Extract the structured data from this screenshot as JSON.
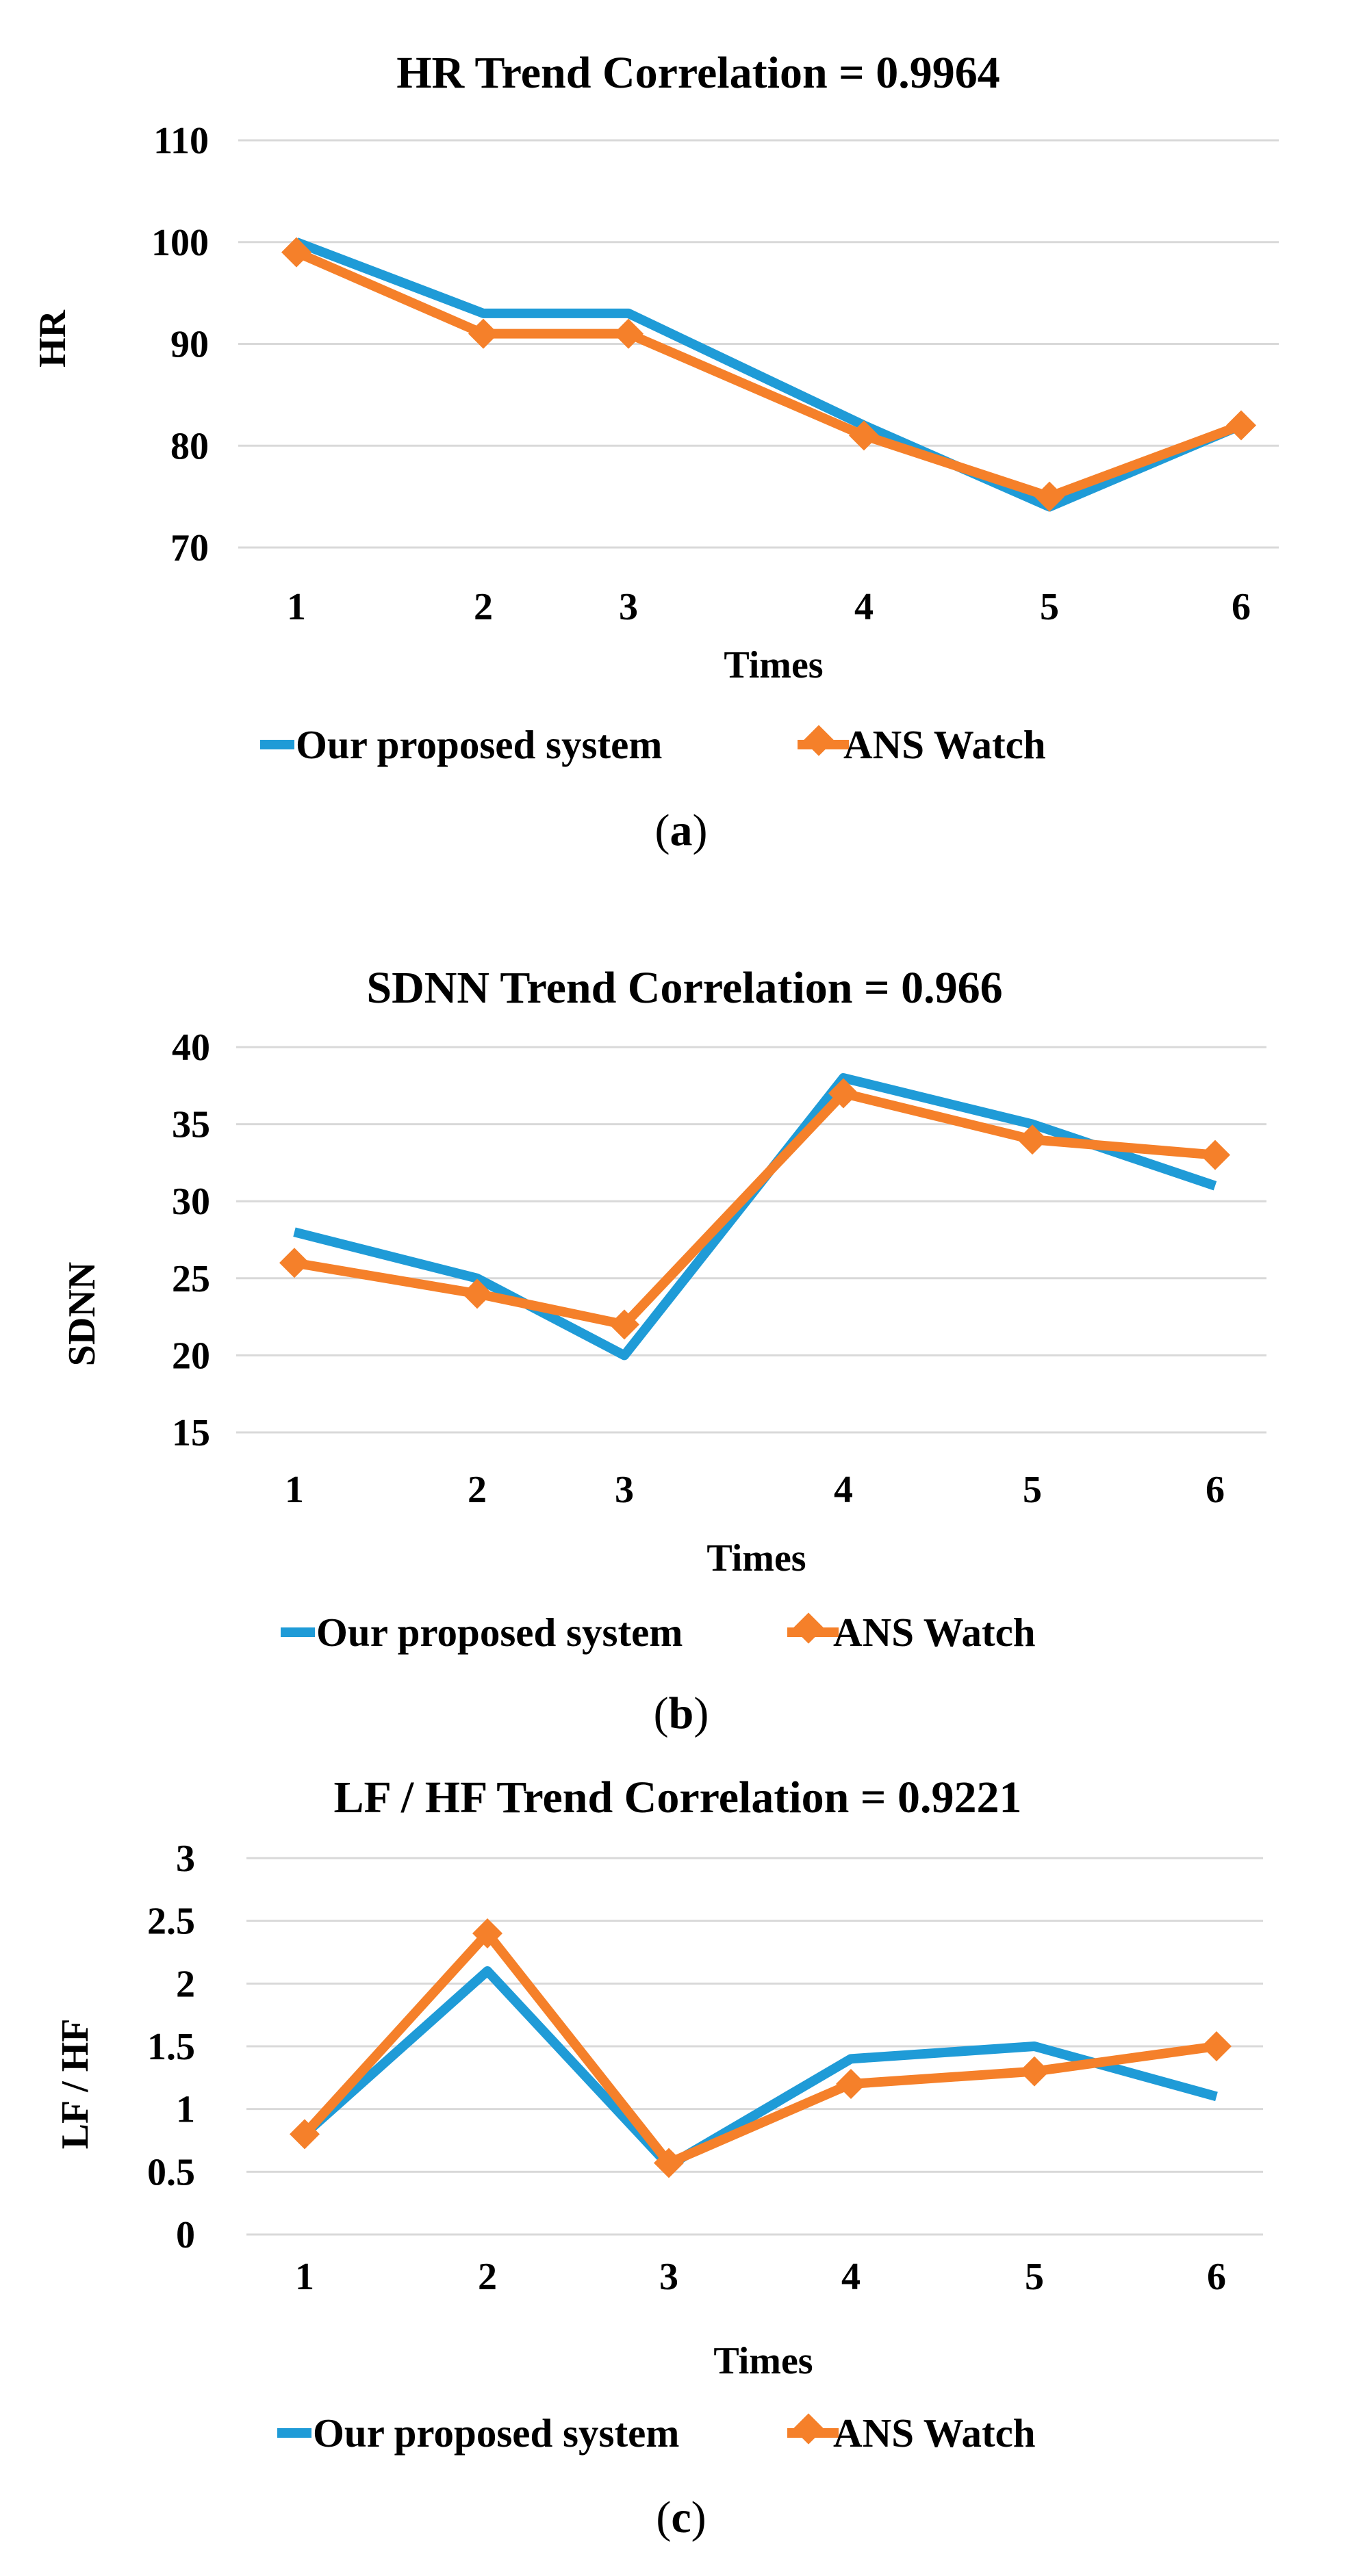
{
  "colors": {
    "proposed": "#1f9bd7",
    "ans_watch": "#f5802a",
    "grid": "#d9d9d9"
  },
  "chart_data": [
    {
      "type": "line",
      "id": "hr",
      "caption": "a",
      "title": "HR Trend Correlation = 0.9964",
      "xlabel": "Times",
      "ylabel": "HR",
      "categories": [
        "1",
        "2",
        "3",
        "4",
        "5",
        "6"
      ],
      "ylim": [
        70,
        110
      ],
      "yticks": [
        70,
        80,
        90,
        100,
        110
      ],
      "ytick_labels": [
        "70",
        "80",
        "90",
        "100",
        "110"
      ],
      "grid": true,
      "legend_position": "bottom",
      "series": [
        {
          "name": "Our proposed system",
          "marker": "none",
          "values": [
            100,
            93,
            93,
            82,
            74,
            82
          ]
        },
        {
          "name": "ANS Watch",
          "marker": "diamond",
          "values": [
            99,
            91,
            91,
            81,
            75,
            82
          ]
        }
      ]
    },
    {
      "type": "line",
      "id": "sdnn",
      "caption": "b",
      "title": "SDNN Trend Correlation = 0.966",
      "xlabel": "Times",
      "ylabel": "SDNN",
      "categories": [
        "1",
        "2",
        "3",
        "4",
        "5",
        "6"
      ],
      "ylim": [
        15,
        40
      ],
      "yticks": [
        15,
        20,
        25,
        30,
        35,
        40
      ],
      "ytick_labels": [
        "15",
        "20",
        "25",
        "30",
        "35",
        "40"
      ],
      "grid": true,
      "legend_position": "bottom",
      "series": [
        {
          "name": "Our proposed system",
          "marker": "none",
          "values": [
            28,
            25,
            20,
            38,
            35,
            31
          ]
        },
        {
          "name": "ANS Watch",
          "marker": "diamond",
          "values": [
            26,
            24,
            22,
            37,
            34,
            33
          ]
        }
      ]
    },
    {
      "type": "line",
      "id": "lfhf",
      "caption": "c",
      "title": "LF / HF Trend Correlation = 0.9221",
      "xlabel": "Times",
      "ylabel": "LF / HF",
      "categories": [
        "1",
        "2",
        "3",
        "4",
        "5",
        "6"
      ],
      "ylim": [
        0,
        3
      ],
      "yticks": [
        0,
        0.5,
        1,
        1.5,
        2,
        2.5,
        3
      ],
      "ytick_labels": [
        "0",
        "0.5",
        "1",
        "1.5",
        "2",
        "2.5",
        "3"
      ],
      "grid": true,
      "legend_position": "bottom",
      "series": [
        {
          "name": "Our proposed system",
          "marker": "none",
          "values": [
            0.8,
            2.1,
            0.55,
            1.4,
            1.5,
            1.1
          ]
        },
        {
          "name": "ANS Watch",
          "marker": "diamond",
          "values": [
            0.8,
            2.4,
            0.57,
            1.2,
            1.3,
            1.5
          ]
        }
      ]
    }
  ]
}
